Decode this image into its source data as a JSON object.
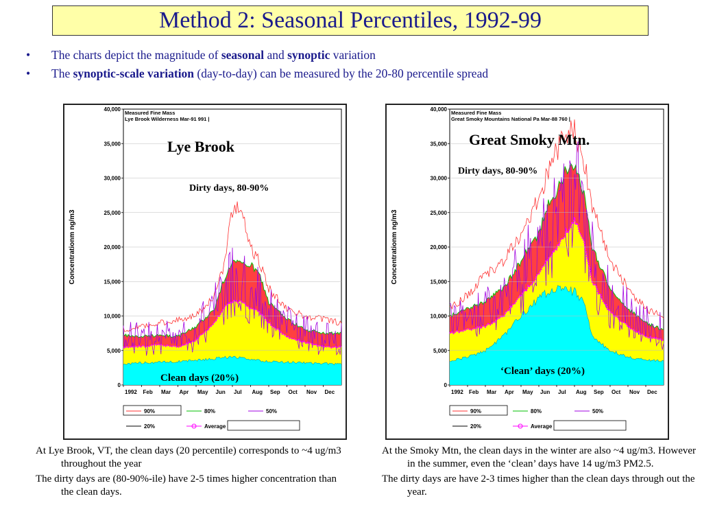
{
  "title": "Method 2: Seasonal Percentiles, 1992-99",
  "bullets": [
    {
      "pre": "The charts depict the magnitude of ",
      "b1": "seasonal",
      "mid": " and ",
      "b2": "synoptic",
      "post": " variation"
    },
    {
      "pre": "The ",
      "b1": "synoptic-scale variation",
      "mid": "",
      "b2": "",
      "post": " (day-to-day) can be measured by the 20-80 percentile spread"
    }
  ],
  "captions": {
    "left": [
      "At Lye Brook, VT, the clean days (20 percentile) corresponds to ~4 ug/m3 throughout the year",
      "The dirty days are (80-90%-ile) have 2-5 times higher concentration than the clean days."
    ],
    "right": [
      "At the Smoky Mtn, the clean days in the winter are also ~4 ug/m3. However in the summer, even the ‘clean’ days have 14 ug/m3 PM2.5.",
      "The dirty days are have 2-3 times higher than the clean days through out the year."
    ]
  },
  "colors": {
    "p90": "#ff4a4a",
    "p80": "#ff4040",
    "mid": "#ffff00",
    "p20": "#00ffff",
    "avg": "#ff00ff",
    "p50": "#a000e0",
    "line90": "#ff3030",
    "green": "#00c000"
  },
  "chart_data": [
    {
      "type": "area",
      "panel": "left",
      "header": [
        "Measured Fine Mass",
        "Lye Brook Wilderness Mar-91 991 |"
      ],
      "site_label": "Lye Brook",
      "annotations": {
        "dirty": "Dirty days, 80-90%",
        "clean": "Clean days (20%)"
      },
      "ylabel": "Concentrationm ng/m3",
      "ylim": [
        0,
        40000
      ],
      "yticks": [
        "0",
        "5,000",
        "10,000",
        "15,000",
        "20,000",
        "25,000",
        "30,000",
        "35,000",
        "40,000"
      ],
      "xticks": [
        "1992",
        "Feb",
        "Mar",
        "Apr",
        "May",
        "Jun",
        "Jul",
        "Aug",
        "Sep",
        "Oct",
        "Nov",
        "Dec"
      ],
      "legend": [
        "90%",
        "80%",
        "50%",
        "20%",
        "Average"
      ],
      "x_months": [
        0,
        1,
        2,
        3,
        4,
        5,
        5.5,
        6,
        6.5,
        7,
        7.5,
        8,
        9,
        10,
        11,
        12
      ],
      "series": [
        {
          "name": "90%",
          "values": [
            8000,
            8500,
            9000,
            9500,
            10000,
            13000,
            17000,
            25000,
            26000,
            20000,
            18000,
            14000,
            11000,
            10000,
            9500,
            9000
          ]
        },
        {
          "name": "80%",
          "values": [
            7200,
            7000,
            7200,
            7000,
            8500,
            11000,
            15000,
            18000,
            17500,
            17500,
            16000,
            12000,
            9500,
            8000,
            7500,
            7500
          ]
        },
        {
          "name": "Average",
          "values": [
            5500,
            5600,
            5800,
            5500,
            6500,
            9000,
            11000,
            12200,
            12000,
            11200,
            10500,
            9000,
            7000,
            6200,
            5500,
            5500
          ]
        },
        {
          "name": "20%",
          "values": [
            3000,
            3200,
            3300,
            3400,
            3600,
            3800,
            4000,
            4000,
            3900,
            3800,
            3500,
            3400,
            3300,
            3200,
            3100,
            3000
          ]
        }
      ]
    },
    {
      "type": "area",
      "panel": "right",
      "header": [
        "Measured Fine Mass",
        "Great Smoky Mountains National Pa Mar-88 760 |"
      ],
      "site_label": "Great Smoky Mtn.",
      "annotations": {
        "dirty": "Dirty days, 80-90%",
        "clean": "‘Clean’ days  (20%)"
      },
      "ylabel": "Concentrationm ng/m3",
      "ylim": [
        0,
        40000
      ],
      "yticks": [
        "0",
        "5,000",
        "10,000",
        "15,000",
        "20,000",
        "25,000",
        "30,000",
        "35,000",
        "40,000"
      ],
      "xticks": [
        "1992",
        "Feb",
        "Mar",
        "Apr",
        "May",
        "Jun",
        "Jul",
        "Aug",
        "Sep",
        "Oct",
        "Nov",
        "Dec"
      ],
      "legend": [
        "90%",
        "80%",
        "50%",
        "20%",
        "Average"
      ],
      "x_months": [
        0,
        1,
        2,
        3,
        4,
        5,
        5.5,
        6,
        6.5,
        7,
        7.5,
        8,
        9,
        10,
        11,
        12
      ],
      "series": [
        {
          "name": "90%",
          "values": [
            11000,
            13000,
            16000,
            18000,
            22000,
            27000,
            31000,
            34000,
            36000,
            37000,
            33000,
            26000,
            18000,
            14000,
            11000,
            10000
          ]
        },
        {
          "name": "80%",
          "values": [
            10000,
            11000,
            12000,
            14000,
            18000,
            22000,
            26000,
            28000,
            31000,
            32000,
            28000,
            20000,
            14000,
            11000,
            9000,
            8000
          ]
        },
        {
          "name": "Average",
          "values": [
            7500,
            8000,
            8500,
            10000,
            13000,
            16000,
            18500,
            20000,
            22000,
            24000,
            21000,
            15000,
            10500,
            8500,
            7000,
            6500
          ]
        },
        {
          "name": "20%",
          "values": [
            3500,
            4000,
            5000,
            7000,
            10000,
            12500,
            13500,
            14000,
            13800,
            13500,
            12000,
            7000,
            5000,
            4000,
            3600,
            3500
          ]
        }
      ]
    }
  ]
}
